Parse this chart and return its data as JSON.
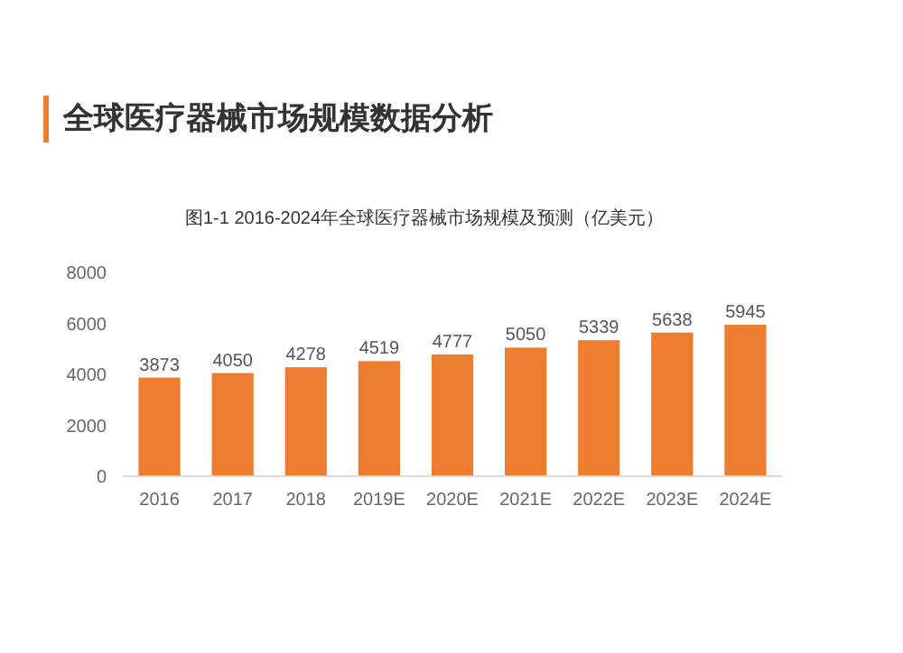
{
  "chart_data": {
    "type": "bar",
    "title": "全球医疗器械市场规模数据分析",
    "subtitle": "图1-1 2016-2024年全球医疗器械市场规模及预测（亿美元）",
    "categories": [
      "2016",
      "2017",
      "2018",
      "2019E",
      "2020E",
      "2021E",
      "2022E",
      "2023E",
      "2024E"
    ],
    "values": [
      3873,
      4050,
      4278,
      4519,
      4777,
      5050,
      5339,
      5638,
      5945
    ],
    "color": "#ed7d31",
    "ylim": [
      0,
      8000
    ],
    "yticks": [
      0,
      2000,
      4000,
      6000,
      8000
    ],
    "data_labels": true,
    "grid": false
  }
}
